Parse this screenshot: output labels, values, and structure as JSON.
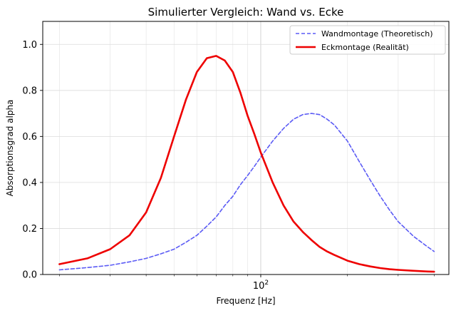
{
  "chart_data": {
    "type": "line",
    "title": "Simulierter Vergleich: Wand vs. Ecke",
    "xlabel": "Frequenz [Hz]",
    "ylabel": "Absorptionsgrad alpha",
    "xscale": "log",
    "xlim": [
      17.5,
      450
    ],
    "ylim": [
      0.0,
      1.1
    ],
    "grid": true,
    "legend_position": "top-right",
    "x_ticks": [
      {
        "value": 100,
        "base": "10",
        "exponent": "2"
      }
    ],
    "y_ticks": [
      {
        "value": 0.0,
        "label": "0.0"
      },
      {
        "value": 0.2,
        "label": "0.2"
      },
      {
        "value": 0.4,
        "label": "0.4"
      },
      {
        "value": 0.6,
        "label": "0.6"
      },
      {
        "value": 0.8,
        "label": "0.8"
      },
      {
        "value": 1.0,
        "label": "1.0"
      }
    ],
    "x": [
      20,
      25,
      30,
      35,
      40,
      45,
      50,
      55,
      60,
      65,
      70,
      75,
      80,
      85,
      90,
      95,
      100,
      110,
      120,
      130,
      140,
      150,
      160,
      170,
      180,
      200,
      220,
      240,
      260,
      280,
      300,
      340,
      380,
      400
    ],
    "series": [
      {
        "name": "Wandmontage (Theoretisch)",
        "color": "#5b5bf5",
        "dash": true,
        "values": [
          0.02,
          0.03,
          0.04,
          0.055,
          0.07,
          0.09,
          0.11,
          0.14,
          0.17,
          0.21,
          0.25,
          0.3,
          0.34,
          0.39,
          0.43,
          0.47,
          0.51,
          0.58,
          0.635,
          0.675,
          0.695,
          0.7,
          0.695,
          0.675,
          0.65,
          0.58,
          0.49,
          0.41,
          0.34,
          0.28,
          0.23,
          0.165,
          0.12,
          0.1
        ]
      },
      {
        "name": "Eckmontage (Realität)",
        "color": "#ee0000",
        "dash": false,
        "values": [
          0.045,
          0.07,
          0.11,
          0.17,
          0.27,
          0.42,
          0.6,
          0.76,
          0.88,
          0.94,
          0.95,
          0.93,
          0.88,
          0.79,
          0.69,
          0.61,
          0.53,
          0.4,
          0.3,
          0.23,
          0.185,
          0.15,
          0.12,
          0.1,
          0.085,
          0.06,
          0.045,
          0.035,
          0.028,
          0.023,
          0.02,
          0.016,
          0.013,
          0.012
        ]
      }
    ]
  }
}
